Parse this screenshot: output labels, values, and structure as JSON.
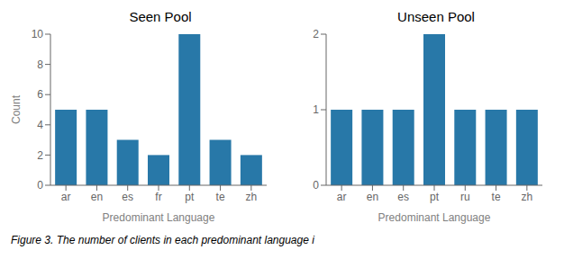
{
  "chart_data": [
    {
      "type": "bar",
      "title": "Seen Pool",
      "categories": [
        "ar",
        "en",
        "es",
        "fr",
        "pt",
        "te",
        "zh"
      ],
      "values": [
        5,
        5,
        3,
        2,
        10,
        3,
        2
      ],
      "color": "#2878a8",
      "xlabel": "Predominant Language",
      "ylabel": "Count",
      "ylim": [
        0,
        10
      ],
      "yticks": [
        0,
        2,
        4,
        6,
        8,
        10
      ]
    },
    {
      "type": "bar",
      "title": "Unseen Pool",
      "categories": [
        "ar",
        "en",
        "es",
        "pt",
        "ru",
        "te",
        "zh"
      ],
      "values": [
        1,
        1,
        1,
        2,
        1,
        1,
        1
      ],
      "color": "#2878a8",
      "xlabel": "Predominant Language",
      "ylim": [
        0,
        2
      ],
      "yticks": [
        0,
        1,
        2
      ]
    }
  ],
  "caption": "Figure 3. The number of clients in each predominant language i"
}
